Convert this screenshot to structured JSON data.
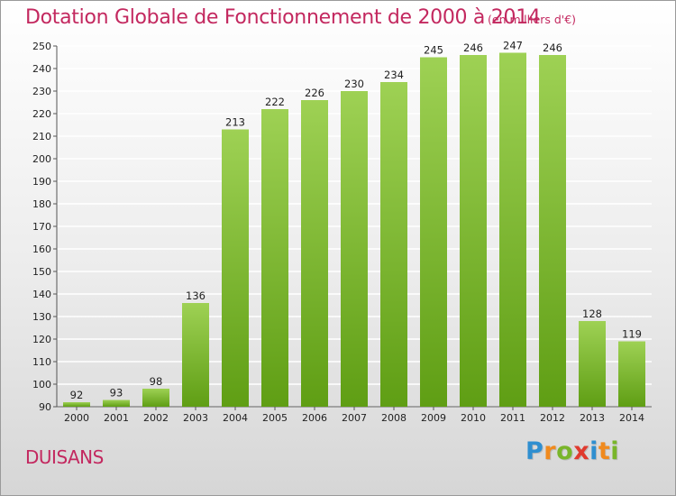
{
  "title": "Dotation Globale de Fonctionnement de 2000 à 2014",
  "subtitle": "(en milliers d'€)",
  "commune": "DUISANS",
  "logo": {
    "letters": [
      "P",
      "r",
      "o",
      "x",
      "i",
      "t",
      "i"
    ],
    "colors": [
      "#2f8fd0",
      "#f08a1e",
      "#79b52a",
      "#e03a2e",
      "#2f8fd0",
      "#f08a1e",
      "#79b52a"
    ]
  },
  "colors": {
    "title": "#c3285f",
    "bar_top": "#9ed154",
    "bar_bottom": "#5f9e14",
    "grid": "#ffffff"
  },
  "chart_data": {
    "type": "bar",
    "title": "Dotation Globale de Fonctionnement de 2000 à 2014",
    "subtitle": "(en milliers d'€)",
    "categories": [
      "2000",
      "2001",
      "2002",
      "2003",
      "2004",
      "2005",
      "2006",
      "2007",
      "2008",
      "2009",
      "2010",
      "2011",
      "2012",
      "2013",
      "2014"
    ],
    "values": [
      92,
      93,
      98,
      136,
      213,
      222,
      226,
      230,
      234,
      245,
      246,
      247,
      246,
      128,
      119
    ],
    "ylim": [
      90,
      250
    ],
    "yticks": [
      90,
      100,
      110,
      120,
      130,
      140,
      150,
      160,
      170,
      180,
      190,
      200,
      210,
      220,
      230,
      240,
      250
    ],
    "grid": true,
    "xlabel": "",
    "ylabel": ""
  }
}
